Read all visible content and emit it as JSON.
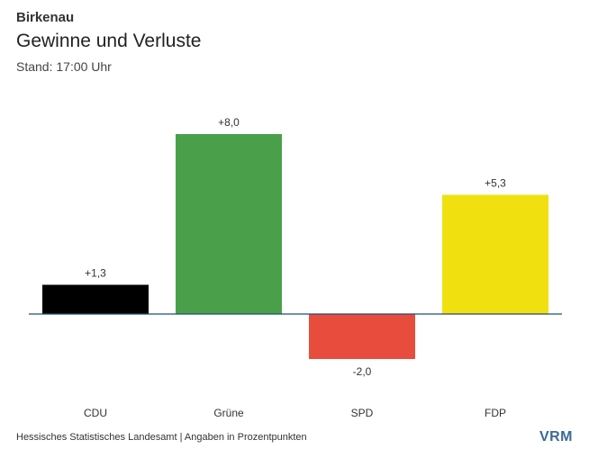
{
  "header": {
    "kicker": "Birkenau",
    "title": "Gewinne und Verluste",
    "subtitle": "Stand: 17:00 Uhr"
  },
  "chart_data": {
    "type": "bar",
    "title": "Gewinne und Verluste",
    "categories": [
      "CDU",
      "Grüne",
      "SPD",
      "FDP"
    ],
    "values": [
      1.3,
      8.0,
      -2.0,
      5.3
    ],
    "labels": [
      "+1,3",
      "+8,0",
      "-2,0",
      "+5,3"
    ],
    "colors": [
      "#000000",
      "#4aa04a",
      "#e84c3d",
      "#f0e010"
    ],
    "baseline_color": "#1f4e79",
    "ylim": [
      -2.0,
      8.0
    ],
    "xlabel": "",
    "ylabel": "",
    "grid": false
  },
  "footer": {
    "source": "Hessisches Statistisches Landesamt | Angaben in Prozentpunkten",
    "logo": "VRM"
  }
}
